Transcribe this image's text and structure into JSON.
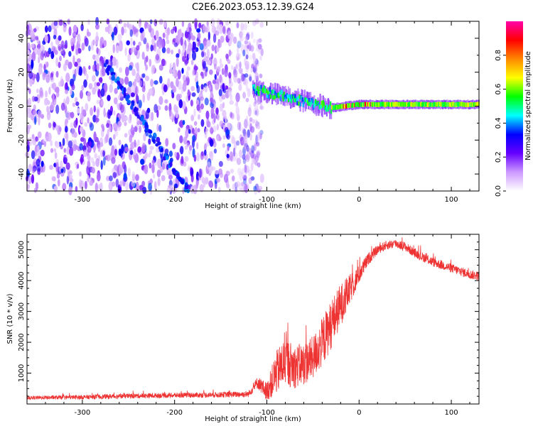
{
  "chart_data": [
    {
      "type": "heatmap",
      "title": "C2E6.2023.053.12.39.G24",
      "xlabel": "Height of straight line (km)",
      "ylabel": "Frequency (Hz)",
      "xlim": [
        -360,
        130
      ],
      "ylim": [
        -50,
        50
      ],
      "xticks": [
        "-300",
        "-200",
        "-100",
        "0",
        "100"
      ],
      "yticks": [
        "-40",
        "-20",
        "0",
        "20",
        "40"
      ],
      "colorbar": {
        "label": "Normalized spectral amplitude",
        "range": [
          0,
          1
        ],
        "ticks": [
          "0.0",
          "0.2",
          "0.4",
          "0.6",
          "0.8"
        ],
        "colors": [
          "#ffffff",
          "#cc99ff",
          "#6600ff",
          "#0000ff",
          "#00ffff",
          "#00ff00",
          "#ffff00",
          "#ff8800",
          "#ff0000",
          "#ff00aa"
        ]
      },
      "features": {
        "noise_region_x": [
          -360,
          -105
        ],
        "diagonal_trace": {
          "x": [
            -275,
            -185
          ],
          "y": [
            25,
            -50
          ]
        },
        "ridge_line": {
          "x": [
            -115,
            -60,
            -30,
            0,
            130
          ],
          "y": [
            10,
            3,
            -1,
            1,
            1
          ]
        }
      }
    },
    {
      "type": "line",
      "xlabel": "Height of straight line (km)",
      "ylabel": "SNR (10 * v/v)",
      "xlim": [
        -360,
        130
      ],
      "ylim": [
        0,
        5500
      ],
      "xticks": [
        "-300",
        "-200",
        "-100",
        "0",
        "100"
      ],
      "yticks": [
        "1000",
        "2000",
        "3000",
        "4000",
        "5000"
      ],
      "color": "#ee3333",
      "series": [
        {
          "x": [
            -360,
            -300,
            -250,
            -200,
            -150,
            -120,
            -110,
            -100,
            -90,
            -80,
            -70,
            -60,
            -50,
            -40,
            -30,
            -20,
            -10,
            0,
            10,
            20,
            30,
            40,
            50,
            60,
            70,
            80,
            90,
            100,
            110,
            120,
            130
          ],
          "y": [
            200,
            220,
            260,
            280,
            300,
            320,
            700,
            400,
            1000,
            1400,
            1200,
            1300,
            1500,
            2000,
            2600,
            3200,
            3700,
            4200,
            4700,
            5000,
            5150,
            5200,
            5100,
            4900,
            4750,
            4600,
            4500,
            4400,
            4300,
            4200,
            4150
          ],
          "noise": [
            60,
            70,
            80,
            80,
            90,
            100,
            200,
            300,
            700,
            800,
            700,
            700,
            700,
            800,
            800,
            700,
            500,
            300,
            200,
            150,
            150,
            150,
            150,
            150,
            150,
            150,
            150,
            150,
            150,
            150,
            150
          ]
        }
      ]
    }
  ]
}
